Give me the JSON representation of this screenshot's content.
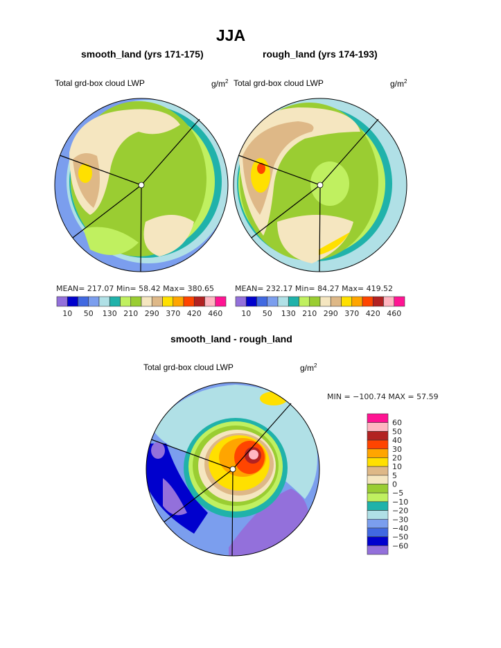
{
  "title": "JJA",
  "panels": [
    {
      "subtitle": "smooth_land (yrs 171-175)",
      "field": "Total grd-box cloud LWP",
      "units": "g/m",
      "units_sup": "2",
      "stats": "MEAN=  217.07    Min=    58.42    Max=  380.65"
    },
    {
      "subtitle": "rough_land (yrs 174-193)",
      "field": "Total grd-box cloud LWP",
      "units": "g/m",
      "units_sup": "2",
      "stats": "MEAN=  232.17    Min=    84.27    Max=  419.52"
    },
    {
      "subtitle": "smooth_land - rough_land",
      "field": "Total grd-box cloud LWP",
      "units": "g/m",
      "units_sup": "2",
      "stats": "MIN  =  −100.74  MAX  =    57.59"
    }
  ],
  "chart_data": [
    {
      "type": "heatmap",
      "projection": "polar",
      "title": "smooth_land (yrs 171-175)",
      "subtitle": "Total grd-box cloud LWP",
      "units": "g/m2",
      "mean": 217.07,
      "min": 58.42,
      "max": 380.65,
      "colorbar": {
        "tick_labels": [
          "10",
          "50",
          "130",
          "210",
          "290",
          "370",
          "420",
          "460"
        ]
      }
    },
    {
      "type": "heatmap",
      "projection": "polar",
      "title": "rough_land (yrs 174-193)",
      "subtitle": "Total grd-box cloud LWP",
      "units": "g/m2",
      "mean": 232.17,
      "min": 84.27,
      "max": 419.52,
      "colorbar": {
        "tick_labels": [
          "10",
          "50",
          "130",
          "210",
          "290",
          "370",
          "420",
          "460"
        ]
      }
    },
    {
      "type": "heatmap",
      "projection": "polar",
      "title": "smooth_land - rough_land",
      "subtitle": "Total grd-box cloud LWP",
      "units": "g/m2",
      "min": -100.74,
      "max": 57.59,
      "colorbar": {
        "tick_labels": [
          "60",
          "50",
          "40",
          "30",
          "20",
          "10",
          "5",
          "0",
          "−5",
          "−10",
          "−20",
          "−30",
          "−40",
          "−50",
          "−60"
        ]
      }
    }
  ],
  "colors": [
    "#9370DB",
    "#0000CD",
    "#4169E1",
    "#7B9EEE",
    "#B0E0E6",
    "#20B2AA",
    "#C0F060",
    "#9ACD32",
    "#F5E6C0",
    "#DEB887",
    "#FFE000",
    "#FFA500",
    "#FF4500",
    "#B22222",
    "#FFB6C1",
    "#FF1493"
  ]
}
